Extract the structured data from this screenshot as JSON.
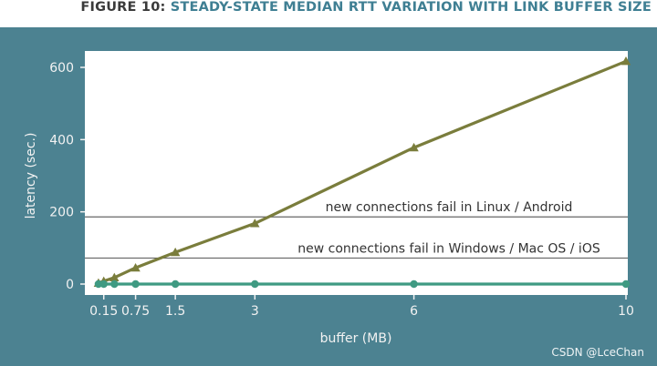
{
  "figure": {
    "label": "FIGURE 10:",
    "title": "STEADY-STATE MEDIAN RTT VARIATION WITH LINK BUFFER SIZE"
  },
  "colors": {
    "panel": "#4c8291",
    "plot_bg": "#ffffff",
    "series_triangle": "#7a7d3c",
    "series_circle": "#3f9a82",
    "threshold": "#666666",
    "axis_text": "#f2f2f2"
  },
  "chart_data": {
    "type": "line",
    "xlabel": "buffer (MB)",
    "ylabel": "latency (sec.)",
    "xlim": [
      0,
      10
    ],
    "ylim": [
      -15,
      620
    ],
    "x_ticks": [
      0.15,
      0.75,
      1.5,
      3,
      6,
      10
    ],
    "x_tick_labels": [
      "0.15",
      "0.75",
      "1.5",
      "3",
      "6",
      "10"
    ],
    "y_ticks": [
      0,
      200,
      400,
      600
    ],
    "y_tick_labels": [
      "0",
      "200",
      "400",
      "600"
    ],
    "grid": false,
    "legend": "none",
    "series": [
      {
        "marker": "triangle",
        "x": [
          0.05,
          0.15,
          0.35,
          0.75,
          1.5,
          3,
          6,
          10
        ],
        "y": [
          3,
          8,
          18,
          45,
          88,
          168,
          378,
          617
        ]
      },
      {
        "marker": "circle",
        "x": [
          0.05,
          0.15,
          0.35,
          0.75,
          1.5,
          3,
          6,
          10
        ],
        "y": [
          0,
          0,
          0,
          0,
          0,
          0,
          0,
          0
        ]
      }
    ],
    "thresholds": [
      {
        "y": 186,
        "label": "new connections fail in Linux / Android"
      },
      {
        "y": 72,
        "label": "new connections fail in Windows / Mac OS / iOS"
      }
    ]
  },
  "watermark": "CSDN @LceChan"
}
